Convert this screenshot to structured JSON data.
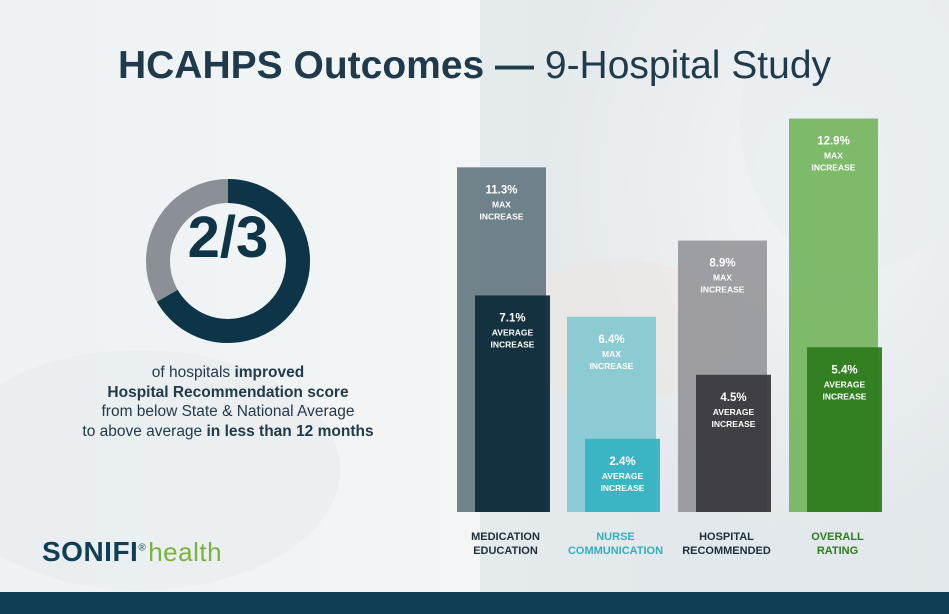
{
  "title": {
    "bold": "HCAHPS Outcomes —",
    "rest": " 9-Hospital Study"
  },
  "stat": {
    "fraction": "2/3",
    "fraction_value": 0.6667,
    "desc_line1_pre": "of hospitals ",
    "desc_line1_bold": "improved",
    "desc_line2": "Hospital Recommendation score",
    "desc_line3": "from below State & National Average",
    "desc_line4_pre": "to above average ",
    "desc_line4_bold": "in less than 12 months"
  },
  "logo": {
    "brand": "SONIFI",
    "mark": "®",
    "health": "health"
  },
  "colors": {
    "title": "#1f3a4a",
    "donut_fill": "#0d3447",
    "donut_track": "#8a9096",
    "medication_max": "#5a6e78",
    "medication_avg": "#0f2c3c",
    "nurse_max": "#7cc6cf",
    "nurse_avg": "#37b3c2",
    "hospital_max": "#8f8f95",
    "hospital_avg": "#3a3a40",
    "overall_max": "#6ab052",
    "overall_avg": "#2f7c1f",
    "nurse_label": "#33aebd",
    "overall_label": "#2f7c1f",
    "label_dark": "#1f2f3a"
  },
  "chart_data": {
    "type": "bar",
    "title": "",
    "xlabel": "",
    "ylabel": "",
    "ylim": [
      0,
      13.5
    ],
    "categories": [
      {
        "line1": "MEDICATION",
        "line2": "EDUCATION",
        "color_key": "label_dark"
      },
      {
        "line1": "NURSE",
        "line2": "COMMUNICATION",
        "color_key": "nurse_label"
      },
      {
        "line1": "HOSPITAL",
        "line2": "RECOMMENDED",
        "color_key": "label_dark"
      },
      {
        "line1": "OVERALL",
        "line2": "RATING",
        "color_key": "overall_label"
      }
    ],
    "series": [
      {
        "name": "MAX INCREASE",
        "values": [
          11.3,
          6.4,
          8.9,
          12.9
        ],
        "labels": [
          "11.3%",
          "6.4%",
          "8.9%",
          "12.9%"
        ],
        "sub1": "MAX",
        "sub2": "INCREASE",
        "color_keys": [
          "medication_max",
          "nurse_max",
          "hospital_max",
          "overall_max"
        ]
      },
      {
        "name": "AVERAGE INCREASE",
        "values": [
          7.1,
          2.4,
          4.5,
          5.4
        ],
        "labels": [
          "7.1%",
          "2.4%",
          "4.5%",
          "5.4%"
        ],
        "sub1": "AVERAGE",
        "sub2": "INCREASE",
        "color_keys": [
          "medication_avg",
          "nurse_avg",
          "hospital_avg",
          "overall_avg"
        ]
      }
    ]
  }
}
